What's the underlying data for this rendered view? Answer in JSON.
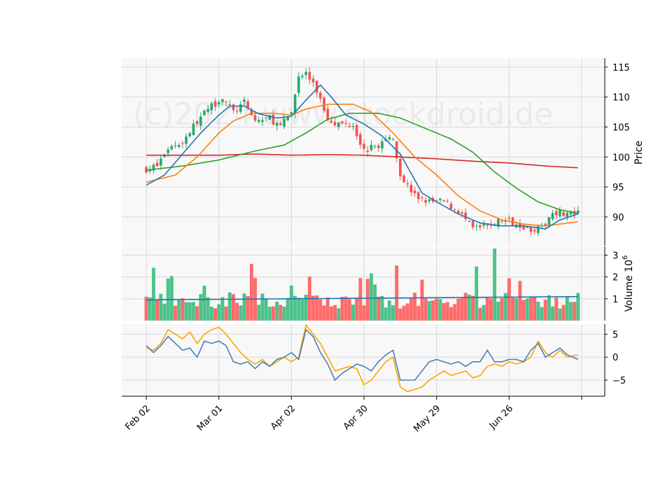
{
  "watermark": "(c)2024 www.stockdroid.de",
  "colors": {
    "up": "#26a96c",
    "up_vol": "#4cc38a",
    "down": "#f05454",
    "down_vol": "#ff6b6b",
    "panel_bg": "#f8f8f8",
    "grid": "#d8d8d8",
    "ma_short": "#1f77b4",
    "ma_mid": "#ff7f0e",
    "ma_long": "#2ca02c",
    "ma_200": "#d62728",
    "vol_ma": "#1f77b4",
    "osc_a": "#4682b4",
    "osc_b": "#ffa500"
  },
  "chart_data": {
    "type": "candlestick",
    "x_ticks": [
      "Feb 02",
      "Mar 01",
      "Apr 02",
      "Apr 30",
      "May 29",
      "Jun 26"
    ],
    "x_tick_days": [
      0,
      20,
      40,
      60,
      80,
      100
    ],
    "day_count": 120,
    "price_axis": {
      "label": "Price",
      "ticks": [
        90,
        95,
        100,
        105,
        110,
        115
      ],
      "range": [
        85.2,
        116.5
      ]
    },
    "volume_axis": {
      "label": "Volume  10",
      "exponent": "6",
      "ticks": [
        1,
        2,
        3
      ],
      "range": [
        0,
        3.4
      ]
    },
    "osc_axis": {
      "ticks": [
        5,
        0,
        -5
      ],
      "range": [
        -8.5,
        7.2
      ]
    },
    "price_anchors": [
      [
        0,
        98
      ],
      [
        3,
        98.5
      ],
      [
        6,
        101.5
      ],
      [
        10,
        102.5
      ],
      [
        14,
        106
      ],
      [
        18,
        108.5
      ],
      [
        21,
        110
      ],
      [
        24,
        107.5
      ],
      [
        27,
        109
      ],
      [
        30,
        106
      ],
      [
        34,
        106.5
      ],
      [
        37,
        105
      ],
      [
        40,
        107.5
      ],
      [
        42,
        113.5
      ],
      [
        44,
        114
      ],
      [
        47,
        111
      ],
      [
        50,
        106.5
      ],
      [
        53,
        105.5
      ],
      [
        57,
        105.5
      ],
      [
        60,
        101
      ],
      [
        64,
        102
      ],
      [
        68,
        103.5
      ],
      [
        70,
        97
      ],
      [
        74,
        93.5
      ],
      [
        78,
        92.5
      ],
      [
        82,
        92.5
      ],
      [
        86,
        91
      ],
      [
        90,
        88
      ],
      [
        94,
        88.5
      ],
      [
        98,
        89.5
      ],
      [
        102,
        89
      ],
      [
        106,
        88
      ],
      [
        109,
        88
      ],
      [
        112,
        91
      ],
      [
        116,
        90.5
      ],
      [
        119,
        90.5
      ]
    ],
    "ma_short_anchors": [
      [
        0,
        95.3
      ],
      [
        5,
        97
      ],
      [
        10,
        100.5
      ],
      [
        15,
        104
      ],
      [
        20,
        107
      ],
      [
        23,
        108.5
      ],
      [
        27,
        108.5
      ],
      [
        31,
        107.2
      ],
      [
        36,
        106.5
      ],
      [
        40,
        106.8
      ],
      [
        44,
        109.5
      ],
      [
        48,
        112
      ],
      [
        51,
        110
      ],
      [
        55,
        107
      ],
      [
        60,
        105.5
      ],
      [
        65,
        103.5
      ],
      [
        70,
        100.5
      ],
      [
        76,
        94
      ],
      [
        80,
        92.5
      ],
      [
        86,
        90.5
      ],
      [
        92,
        89
      ],
      [
        98,
        88.5
      ],
      [
        104,
        88.5
      ],
      [
        110,
        88
      ],
      [
        114,
        89.5
      ],
      [
        119,
        90.5
      ]
    ],
    "ma_mid_anchors": [
      [
        0,
        95.8
      ],
      [
        8,
        97
      ],
      [
        14,
        100
      ],
      [
        20,
        104
      ],
      [
        24,
        106
      ],
      [
        29,
        107.3
      ],
      [
        35,
        107.3
      ],
      [
        40,
        107
      ],
      [
        44,
        108
      ],
      [
        50,
        108.8
      ],
      [
        57,
        108.8
      ],
      [
        62,
        107.5
      ],
      [
        68,
        104
      ],
      [
        74,
        100
      ],
      [
        80,
        97
      ],
      [
        86,
        93.5
      ],
      [
        92,
        91
      ],
      [
        98,
        89.5
      ],
      [
        104,
        88.8
      ],
      [
        110,
        88.5
      ],
      [
        119,
        89.2
      ]
    ],
    "ma_long_anchors": [
      [
        0,
        97.8
      ],
      [
        10,
        98.5
      ],
      [
        20,
        99.5
      ],
      [
        30,
        101
      ],
      [
        38,
        102
      ],
      [
        44,
        104
      ],
      [
        50,
        106.3
      ],
      [
        56,
        107.3
      ],
      [
        64,
        107.3
      ],
      [
        70,
        106.5
      ],
      [
        78,
        104.5
      ],
      [
        84,
        103
      ],
      [
        90,
        100.8
      ],
      [
        96,
        97.5
      ],
      [
        102,
        94.8
      ],
      [
        108,
        92.5
      ],
      [
        114,
        91.2
      ],
      [
        119,
        90.6
      ]
    ],
    "ma_200_anchors": [
      [
        0,
        100.3
      ],
      [
        20,
        100.3
      ],
      [
        30,
        100.5
      ],
      [
        40,
        100.3
      ],
      [
        50,
        100.4
      ],
      [
        60,
        100.3
      ],
      [
        70,
        100
      ],
      [
        80,
        99.7
      ],
      [
        90,
        99.3
      ],
      [
        100,
        99
      ],
      [
        110,
        98.5
      ],
      [
        119,
        98.2
      ]
    ],
    "volume_avg": 0.95,
    "osc_a_anchors": [
      [
        0,
        2.5
      ],
      [
        2,
        1
      ],
      [
        4,
        2.5
      ],
      [
        6,
        4.5
      ],
      [
        8,
        3
      ],
      [
        10,
        1.5
      ],
      [
        12,
        2
      ],
      [
        14,
        0
      ],
      [
        16,
        3.5
      ],
      [
        18,
        3
      ],
      [
        20,
        3.5
      ],
      [
        22,
        2.5
      ],
      [
        24,
        -1
      ],
      [
        26,
        -1.5
      ],
      [
        28,
        -1
      ],
      [
        30,
        -2.5
      ],
      [
        32,
        -1
      ],
      [
        34,
        -2
      ],
      [
        36,
        -0.5
      ],
      [
        38,
        0
      ],
      [
        40,
        1
      ],
      [
        42,
        -0.5
      ],
      [
        44,
        6
      ],
      [
        46,
        4.5
      ],
      [
        48,
        1
      ],
      [
        50,
        -1.5
      ],
      [
        52,
        -5
      ],
      [
        54,
        -3.5
      ],
      [
        56,
        -2.5
      ],
      [
        58,
        -1.5
      ],
      [
        60,
        -2
      ],
      [
        62,
        -3
      ],
      [
        64,
        -1
      ],
      [
        66,
        0.5
      ],
      [
        68,
        1.5
      ],
      [
        70,
        -5
      ],
      [
        74,
        -5
      ],
      [
        76,
        -3
      ],
      [
        78,
        -1
      ],
      [
        80,
        -0.5
      ],
      [
        82,
        -1
      ],
      [
        84,
        -1.5
      ],
      [
        86,
        -1
      ],
      [
        88,
        -2
      ],
      [
        90,
        -1
      ],
      [
        92,
        -1
      ],
      [
        94,
        1.5
      ],
      [
        96,
        -1
      ],
      [
        98,
        -1
      ],
      [
        100,
        -0.5
      ],
      [
        102,
        -0.5
      ],
      [
        104,
        -1
      ],
      [
        106,
        1.5
      ],
      [
        108,
        3
      ],
      [
        110,
        0
      ],
      [
        112,
        1
      ],
      [
        114,
        2
      ],
      [
        116,
        0.5
      ],
      [
        119,
        -0.5
      ]
    ],
    "osc_b_anchors": [
      [
        0,
        2
      ],
      [
        2,
        1.5
      ],
      [
        4,
        3
      ],
      [
        6,
        6
      ],
      [
        8,
        5
      ],
      [
        10,
        4
      ],
      [
        12,
        5.5
      ],
      [
        14,
        3
      ],
      [
        16,
        5
      ],
      [
        18,
        6
      ],
      [
        20,
        6.5
      ],
      [
        22,
        5
      ],
      [
        24,
        3
      ],
      [
        26,
        1
      ],
      [
        28,
        -0.5
      ],
      [
        30,
        -1.5
      ],
      [
        32,
        -0.5
      ],
      [
        34,
        -2
      ],
      [
        36,
        -1
      ],
      [
        38,
        0
      ],
      [
        40,
        -1
      ],
      [
        42,
        0
      ],
      [
        44,
        7
      ],
      [
        46,
        5
      ],
      [
        48,
        3
      ],
      [
        50,
        0
      ],
      [
        52,
        -3
      ],
      [
        54,
        -2.5
      ],
      [
        56,
        -2
      ],
      [
        58,
        -2.5
      ],
      [
        60,
        -6
      ],
      [
        62,
        -5
      ],
      [
        64,
        -3
      ],
      [
        66,
        -1
      ],
      [
        68,
        0
      ],
      [
        70,
        -6.5
      ],
      [
        72,
        -7.5
      ],
      [
        74,
        -7
      ],
      [
        76,
        -6.5
      ],
      [
        78,
        -5
      ],
      [
        80,
        -4
      ],
      [
        82,
        -3
      ],
      [
        84,
        -4
      ],
      [
        86,
        -3.5
      ],
      [
        88,
        -3
      ],
      [
        90,
        -4.5
      ],
      [
        92,
        -4
      ],
      [
        94,
        -2
      ],
      [
        96,
        -1.5
      ],
      [
        98,
        -2
      ],
      [
        100,
        -1
      ],
      [
        102,
        -1.5
      ],
      [
        104,
        -1
      ],
      [
        106,
        0
      ],
      [
        108,
        3.5
      ],
      [
        110,
        1
      ],
      [
        112,
        0
      ],
      [
        114,
        1.5
      ],
      [
        116,
        0
      ],
      [
        119,
        0.5
      ]
    ]
  }
}
